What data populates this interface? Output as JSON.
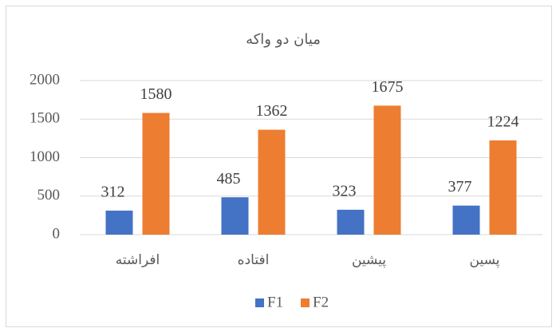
{
  "chart_data": {
    "type": "bar",
    "title": "میان دو واکه",
    "categories": [
      "افراشته",
      "افتاده",
      "پیشین",
      "پسین"
    ],
    "series": [
      {
        "name": "F1",
        "color": "#4472c4",
        "values": [
          312,
          485,
          323,
          377
        ]
      },
      {
        "name": "F2",
        "color": "#ed7d31",
        "values": [
          1580,
          1362,
          1675,
          1224
        ]
      }
    ],
    "ylim": [
      0,
      2000
    ],
    "yticks": [
      0,
      500,
      1000,
      1500,
      2000
    ],
    "grid": true,
    "legend": "bottom"
  }
}
